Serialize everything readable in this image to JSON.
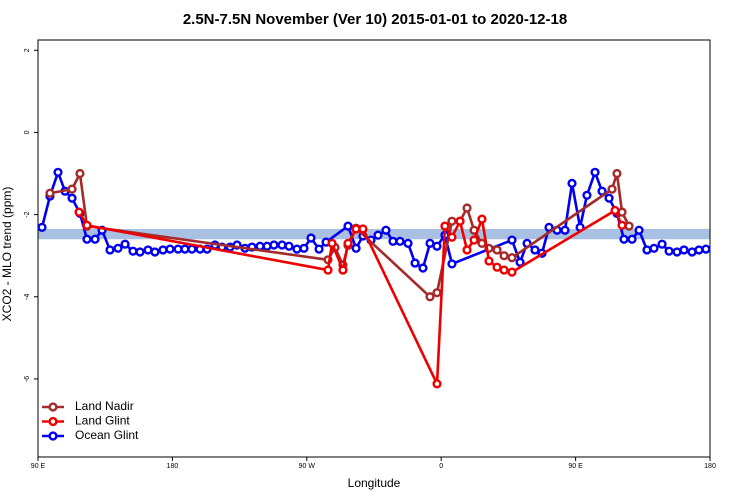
{
  "chart_data": {
    "type": "line",
    "title": "2.5N-7.5N November (Ver 10)   2015-01-01 to 2020-12-18",
    "x_label": "Longitude",
    "y_label": "XCO2 - MLO trend (ppm)",
    "xlim": [
      90,
      540
    ],
    "ylim": [
      -7.9,
      2.25
    ],
    "xticks": [
      {
        "value": 90,
        "label": "90 E"
      },
      180,
      {
        "value": 270,
        "label": "90 W"
      },
      {
        "value": 360,
        "label": "0"
      },
      {
        "value": 450,
        "label": "90 E"
      },
      {
        "value": 540,
        "label": "180"
      }
    ],
    "yticks": [
      -6,
      -4,
      -2,
      0,
      2
    ],
    "band": {
      "range": [
        -2.6,
        -2.35
      ],
      "color": "#a9c0e3"
    },
    "legend": "bottomleft",
    "series": [
      {
        "name": "Ocean Glint",
        "color": "#0000ee",
        "x": [
          92.7,
          98,
          103.4,
          108.1,
          112.8,
          118.1,
          122.8,
          128.2,
          132.9,
          138.2,
          143.6,
          148.3,
          153.6,
          158.3,
          163.7,
          168.3,
          173.7,
          178.4,
          183.8,
          188.4,
          193.1,
          198.5,
          203.2,
          208.5,
          213.2,
          218.6,
          223.3,
          228.6,
          233.3,
          238.7,
          243.4,
          248,
          253.4,
          258.1,
          263.4,
          268.1,
          272.8,
          278.2,
          282.9,
          297.6,
          303,
          307.6,
          313,
          317.7,
          323,
          327.7,
          332.4,
          337.8,
          342.5,
          347.8,
          352.5,
          357.2,
          362.5,
          367.2,
          407.4,
          412.8,
          417.5,
          422.8,
          427.5,
          432.2,
          437.6,
          442.9,
          447.6,
          453,
          457.6,
          463,
          467.7,
          472.4,
          477.7,
          482.4,
          487.8,
          492.5,
          497.8,
          502.5,
          507.9,
          512.6,
          517.9,
          522.6,
          528,
          532.6,
          537.3
        ],
        "values": [
          -2.31,
          -1.55,
          -0.97,
          -1.43,
          -1.6,
          -1.97,
          -2.6,
          -2.6,
          -2.38,
          -2.86,
          -2.82,
          -2.72,
          -2.89,
          -2.91,
          -2.86,
          -2.91,
          -2.86,
          -2.84,
          -2.84,
          -2.84,
          -2.84,
          -2.84,
          -2.84,
          -2.74,
          -2.79,
          -2.79,
          -2.74,
          -2.82,
          -2.79,
          -2.77,
          -2.77,
          -2.74,
          -2.74,
          -2.77,
          -2.84,
          -2.82,
          -2.57,
          -2.84,
          -2.67,
          -2.28,
          -2.82,
          -2.52,
          -2.62,
          -2.5,
          -2.38,
          -2.65,
          -2.65,
          -2.7,
          -3.18,
          -3.3,
          -2.7,
          -2.77,
          -2.5,
          -3.2,
          -2.62,
          -3.16,
          -2.7,
          -2.86,
          -2.94,
          -2.31,
          -2.38,
          -2.38,
          -1.24,
          -2.31,
          -1.53,
          -0.97,
          -1.43,
          -1.6,
          -1.97,
          -2.6,
          -2.6,
          -2.38,
          -2.86,
          -2.82,
          -2.72,
          -2.89,
          -2.91,
          -2.86,
          -2.91,
          -2.86,
          -2.84
        ]
      },
      {
        "name": "Land Nadir",
        "color": "#a52a2a",
        "x": [
          98,
          112.8,
          118.1,
          122.8,
          284.2,
          288.9,
          294.2,
          297.6,
          303,
          352.5,
          357.2,
          367.2,
          372.6,
          377.3,
          382,
          387.3,
          392,
          397.4,
          402.1,
          407.4,
          474.4,
          477.7,
          481.1,
          485.8
        ],
        "values": [
          -1.48,
          -1.38,
          -1.0,
          -2.28,
          -3.1,
          -2.8,
          -3.23,
          -2.75,
          -2.33,
          -4.0,
          -3.9,
          -2.16,
          -2.16,
          -1.84,
          -2.38,
          -2.7,
          -2.82,
          -2.86,
          -3.0,
          -3.05,
          -1.38,
          -1.0,
          -1.94,
          -2.28
        ]
      },
      {
        "name": "Land Glint",
        "color": "#ee0000",
        "x": [
          117.5,
          122.8,
          284.2,
          286.9,
          294.2,
          297.6,
          303,
          307.6,
          357.2,
          362.5,
          367.2,
          372.6,
          377.3,
          382,
          387.3,
          392,
          397.4,
          402.1,
          407.4,
          476.4,
          481.1
        ],
        "values": [
          -1.94,
          -2.26,
          -3.35,
          -2.7,
          -3.35,
          -2.7,
          -2.35,
          -2.35,
          -6.12,
          -2.28,
          -2.55,
          -2.16,
          -2.86,
          -2.62,
          -2.11,
          -3.13,
          -3.28,
          -3.35,
          -3.4,
          -1.9,
          -2.26
        ]
      }
    ]
  }
}
